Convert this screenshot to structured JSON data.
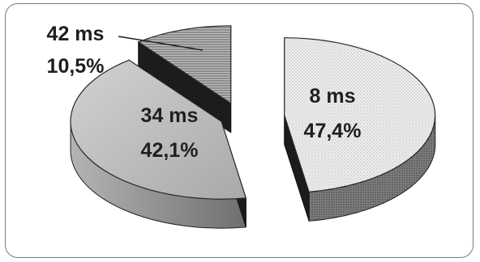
{
  "chart_data": {
    "type": "pie",
    "style": "3d-exploded",
    "slices": [
      {
        "label": "8 ms",
        "percent_label": "47,4%",
        "value": 47.4,
        "color": "#e6e6e6"
      },
      {
        "label": "34 ms",
        "percent_label": "42,1%",
        "value": 42.1,
        "color": "#bdbdbd"
      },
      {
        "label": "42 ms",
        "percent_label": "10,5%",
        "value": 10.5,
        "color": "#9a9a9a"
      }
    ],
    "legend": "none",
    "grid": false
  }
}
